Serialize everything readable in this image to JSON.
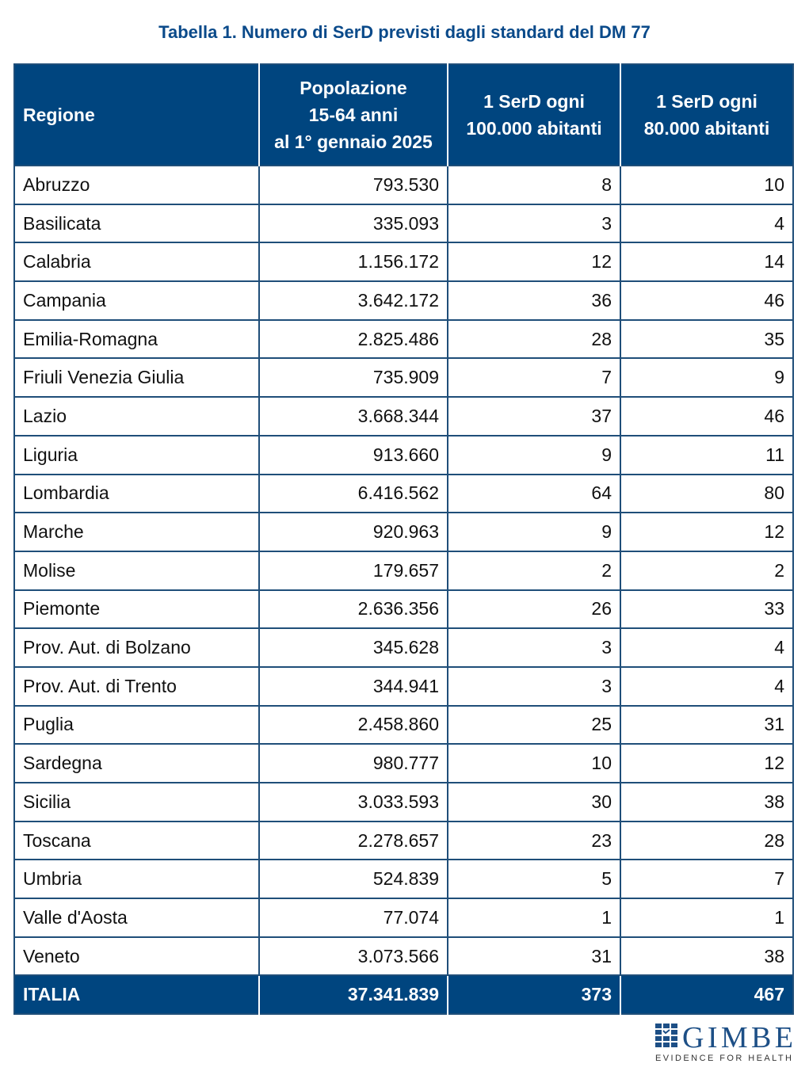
{
  "title": "Tabella 1. Numero di SerD previsti dagli standard del DM 77",
  "headers": [
    "Regione",
    "Popolazione 15-64 anni al 1° gennaio 2025",
    "1 SerD ogni 100.000 abitanti",
    "1 SerD ogni 80.000 abitanti"
  ],
  "header_lines": {
    "pop": [
      "Popolazione",
      "15-64 anni",
      "al 1° gennaio 2025"
    ],
    "c100": [
      "1 SerD ogni",
      "100.000 abitanti"
    ],
    "c80": [
      "1 SerD ogni",
      "80.000 abitanti"
    ]
  },
  "rows": [
    [
      "Abruzzo",
      "793.530",
      "8",
      "10"
    ],
    [
      "Basilicata",
      "335.093",
      "3",
      "4"
    ],
    [
      "Calabria",
      "1.156.172",
      "12",
      "14"
    ],
    [
      "Campania",
      "3.642.172",
      "36",
      "46"
    ],
    [
      "Emilia-Romagna",
      "2.825.486",
      "28",
      "35"
    ],
    [
      "Friuli Venezia Giulia",
      "735.909",
      "7",
      "9"
    ],
    [
      "Lazio",
      "3.668.344",
      "37",
      "46"
    ],
    [
      "Liguria",
      "913.660",
      "9",
      "11"
    ],
    [
      "Lombardia",
      "6.416.562",
      "64",
      "80"
    ],
    [
      "Marche",
      "920.963",
      "9",
      "12"
    ],
    [
      "Molise",
      "179.657",
      "2",
      "2"
    ],
    [
      "Piemonte",
      "2.636.356",
      "26",
      "33"
    ],
    [
      "Prov. Aut. di Bolzano",
      "345.628",
      "3",
      "4"
    ],
    [
      "Prov. Aut. di Trento",
      "344.941",
      "3",
      "4"
    ],
    [
      "Puglia",
      "2.458.860",
      "25",
      "31"
    ],
    [
      "Sardegna",
      "980.777",
      "10",
      "12"
    ],
    [
      "Sicilia",
      "3.033.593",
      "30",
      "38"
    ],
    [
      "Toscana",
      "2.278.657",
      "23",
      "28"
    ],
    [
      "Umbria",
      "524.839",
      "5",
      "7"
    ],
    [
      "Valle d'Aosta",
      "77.074",
      "1",
      "1"
    ],
    [
      "Veneto",
      "3.073.566",
      "31",
      "38"
    ]
  ],
  "total": [
    "ITALIA",
    "37.341.839",
    "373",
    "467"
  ],
  "logo": {
    "name": "GIMBE",
    "tagline": "EVIDENCE FOR HEALTH"
  },
  "colors": {
    "header_bg": "#00457f",
    "title": "#0a4a8a",
    "border": "#1f4e79"
  }
}
